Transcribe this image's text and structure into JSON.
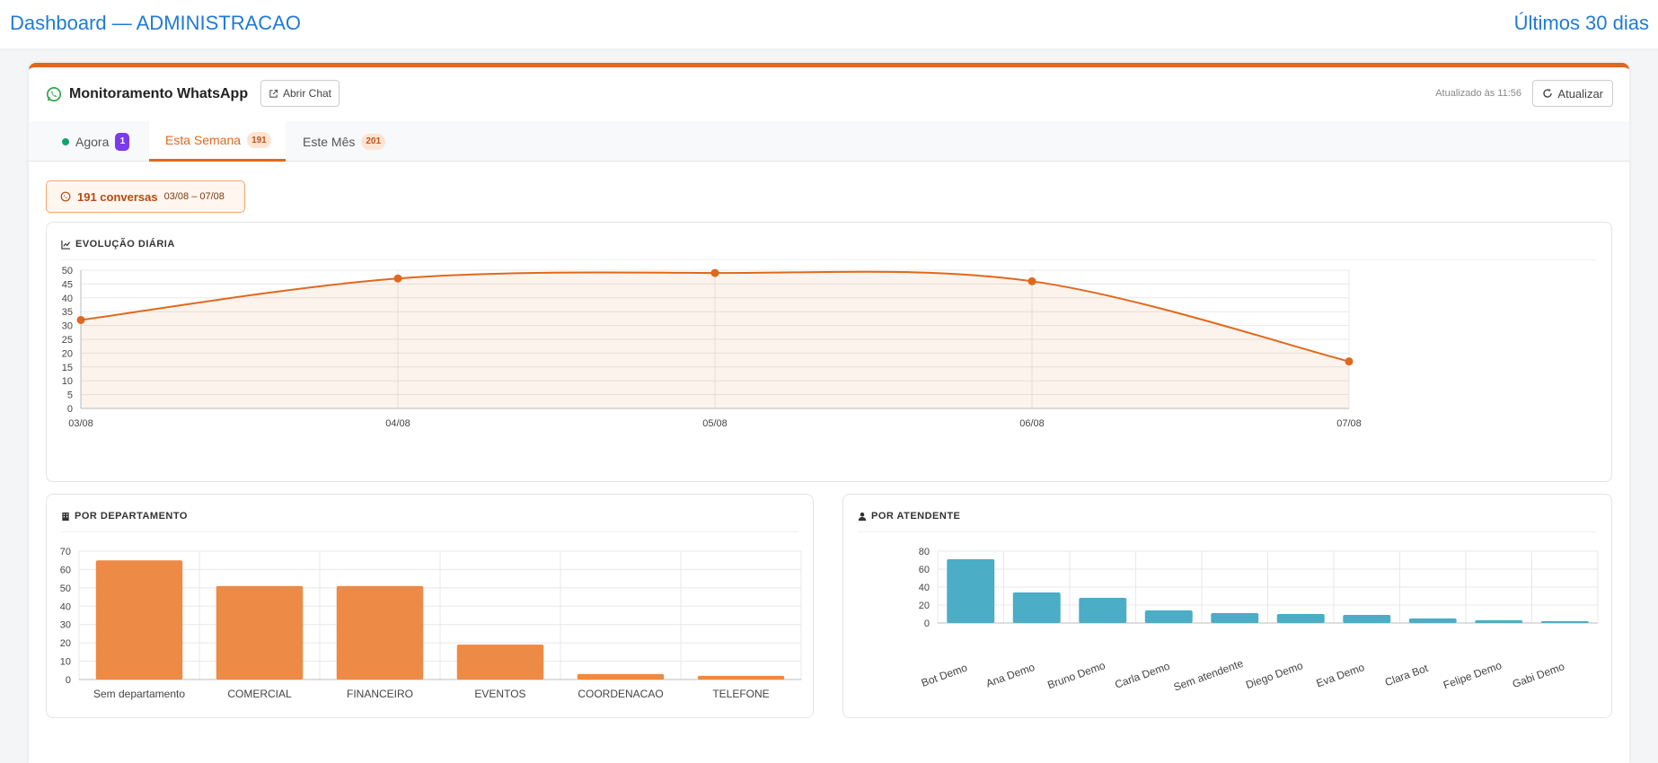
{
  "topbar": {
    "title": "Dashboard — ADMINISTRACAO",
    "range": "Últimos 30 dias"
  },
  "card": {
    "title": "Monitoramento WhatsApp",
    "open_chat_label": "Abrir Chat",
    "updated_label": "Atualizado às 11:56",
    "refresh_label": "Atualizar",
    "accent_color": "#e0681c"
  },
  "tabs": [
    {
      "label": "Agora",
      "badge": "1"
    },
    {
      "label": "Esta Semana",
      "badge": "191"
    },
    {
      "label": "Este Mês",
      "badge": "201"
    }
  ],
  "summary": {
    "count": "191 conversas",
    "dates": "03/08 – 07/08"
  },
  "panels": {
    "evolution": "EVOLUÇÃO DIÁRIA",
    "department": "POR DEPARTAMENTO",
    "attendant": "POR ATENDENTE"
  },
  "chart_data": [
    {
      "type": "area",
      "categories": [
        "03/08",
        "04/08",
        "05/08",
        "06/08",
        "07/08"
      ],
      "values": [
        32,
        47,
        49,
        46,
        17
      ],
      "ylim": [
        0,
        50
      ],
      "yticks": [
        0,
        5,
        10,
        15,
        20,
        25,
        30,
        35,
        40,
        45,
        50
      ],
      "color": "#e0681c",
      "grid": true
    },
    {
      "type": "bar",
      "categories": [
        "Sem departamento",
        "COMERCIAL",
        "FINANCEIRO",
        "EVENTOS",
        "COORDENACAO",
        "TELEFONE"
      ],
      "values": [
        65,
        51,
        51,
        19,
        3,
        2
      ],
      "ylim": [
        0,
        70
      ],
      "yticks": [
        0,
        10,
        20,
        30,
        40,
        50,
        60,
        70
      ],
      "color": "#ed8a45",
      "grid": true
    },
    {
      "type": "bar",
      "categories": [
        "Bot Demo",
        "Ana Demo",
        "Bruno Demo",
        "Carla Demo",
        "Sem atendente",
        "Diego Demo",
        "Eva Demo",
        "Clara Bot",
        "Felipe Demo",
        "Gabi Demo"
      ],
      "values": [
        71,
        34,
        28,
        14,
        11,
        10,
        9,
        5,
        3,
        2
      ],
      "ylim": [
        0,
        80
      ],
      "yticks": [
        0,
        20,
        40,
        60,
        80
      ],
      "color": "#4badc6",
      "grid": true
    }
  ]
}
